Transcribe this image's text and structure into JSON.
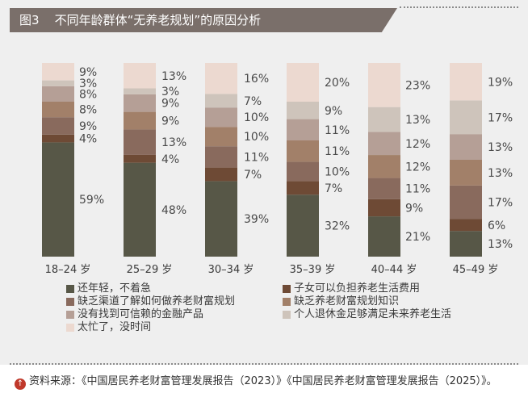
{
  "figure_label": "图3",
  "figure_title": "不同年龄群体“无养老规划”的原因分析",
  "source_text": "资料来源：《中国居民养老财富管理发展报告（2023）》《中国居民养老财富管理发展报告（2025）》。",
  "chart_data": {
    "type": "bar",
    "stacked": true,
    "value_suffix": "%",
    "categories": [
      "18–24 岁",
      "25–29 岁",
      "30–34 岁",
      "35–39 岁",
      "40–44 岁",
      "45–49 岁"
    ],
    "series": [
      {
        "name": "还年轻，不着急",
        "color": "#575747",
        "values": [
          59,
          48,
          39,
          32,
          21,
          13
        ]
      },
      {
        "name": "子女可以负担养老生活费用",
        "color": "#6e4a35",
        "values": [
          4,
          4,
          7,
          7,
          9,
          6
        ]
      },
      {
        "name": "缺乏渠道了解如何做养老财富规划",
        "color": "#896a5d",
        "values": [
          9,
          13,
          11,
          10,
          11,
          17
        ]
      },
      {
        "name": "缺乏养老财富规划知识",
        "color": "#a28069",
        "values": [
          8,
          9,
          10,
          11,
          12,
          13
        ]
      },
      {
        "name": "没有找到可信赖的金融产品",
        "color": "#b59f96",
        "values": [
          8,
          9,
          10,
          11,
          12,
          13
        ]
      },
      {
        "name": "个人退休金足够满足未来养老生活",
        "color": "#cec4bb",
        "values": [
          3,
          3,
          7,
          9,
          13,
          17
        ]
      },
      {
        "name": "太忙了，没时间",
        "color": "#ecd9d0",
        "values": [
          9,
          13,
          16,
          20,
          23,
          19
        ]
      }
    ]
  }
}
